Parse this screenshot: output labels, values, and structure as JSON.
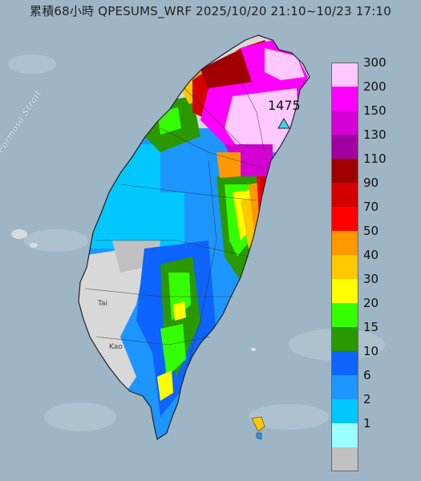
{
  "title": "累積68小時 QPESUMS_WRF 2025/10/20 21:10~10/23 17:10",
  "sea_label": "Formosa Strait",
  "peak": {
    "value": "1475"
  },
  "cities": [
    {
      "label": "Tai"
    },
    {
      "label": "Kao"
    }
  ],
  "legend": {
    "items": [
      {
        "label": "300",
        "color": "#ffc8ff"
      },
      {
        "label": "200",
        "color": "#ff00ff"
      },
      {
        "label": "150",
        "color": "#d400d4"
      },
      {
        "label": "130",
        "color": "#a000a0"
      },
      {
        "label": "110",
        "color": "#a00000"
      },
      {
        "label": "90",
        "color": "#d40000"
      },
      {
        "label": "70",
        "color": "#ff0000"
      },
      {
        "label": "50",
        "color": "#ff9800"
      },
      {
        "label": "40",
        "color": "#ffc800"
      },
      {
        "label": "30",
        "color": "#ffff00"
      },
      {
        "label": "20",
        "color": "#33ff00"
      },
      {
        "label": "15",
        "color": "#2a9900"
      },
      {
        "label": "10",
        "color": "#0d64ff"
      },
      {
        "label": "6",
        "color": "#1e96ff"
      },
      {
        "label": "2",
        "color": "#00c8ff"
      },
      {
        "label": "1",
        "color": "#9bffff"
      },
      {
        "label": "",
        "color": "#c0c0c0"
      }
    ]
  }
}
